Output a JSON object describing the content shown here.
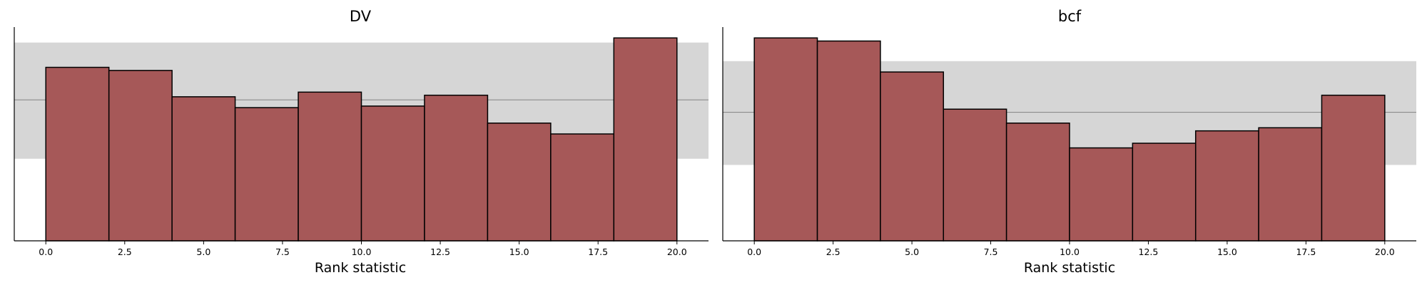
{
  "colors": {
    "bar": "#a65858",
    "band": "#d6d6d6",
    "mean_line": "#8c8c8c"
  },
  "chart_data": [
    {
      "type": "bar",
      "title": "DV",
      "xlabel": "Rank statistic",
      "ylabel": "",
      "bin_edges": [
        0,
        2,
        4,
        6,
        8,
        10,
        12,
        14,
        16,
        18,
        20
      ],
      "values": [
        112,
        110,
        93,
        86,
        96,
        87,
        94,
        76,
        69,
        131
      ],
      "band": {
        "low": 53,
        "high": 128,
        "mean": 91
      },
      "xticks": [
        "0.0",
        "2.5",
        "5.0",
        "7.5",
        "10.0",
        "12.5",
        "15.0",
        "17.5",
        "20.0"
      ],
      "xlim": [
        -1,
        21
      ],
      "ylim": [
        0,
        138
      ],
      "grid": false
    },
    {
      "type": "bar",
      "title": "bcf",
      "xlabel": "Rank statistic",
      "ylabel": "",
      "bin_edges": [
        0,
        2,
        4,
        6,
        8,
        10,
        12,
        14,
        16,
        18,
        20
      ],
      "values": [
        131,
        129,
        109,
        85,
        76,
        60,
        63,
        71,
        73,
        94
      ],
      "band": {
        "low": 49,
        "high": 116,
        "mean": 83
      },
      "xticks": [
        "0.0",
        "2.5",
        "5.0",
        "7.5",
        "10.0",
        "12.5",
        "15.0",
        "17.5",
        "20.0"
      ],
      "xlim": [
        -1,
        21
      ],
      "ylim": [
        0,
        138
      ],
      "grid": false
    }
  ]
}
